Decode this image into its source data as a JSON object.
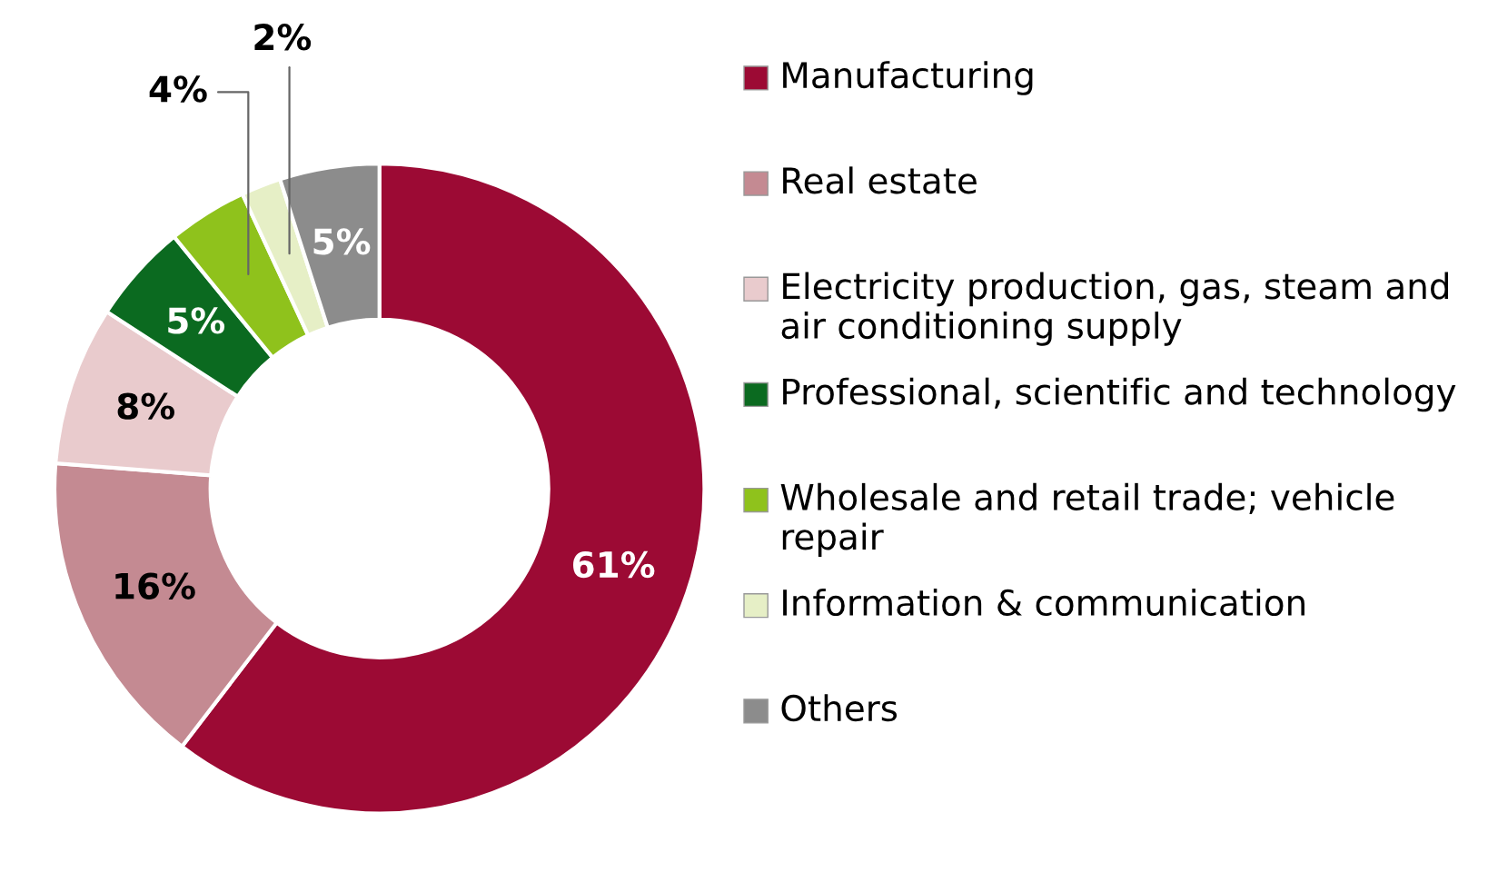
{
  "chart_data": {
    "type": "donut",
    "categories": [
      "Manufacturing",
      "Real estate",
      "Electricity production, gas, steam and air conditioning supply",
      "Professional, scientific and technology",
      "Wholesale and retail trade; vehicle repair",
      "Information & communication",
      "Others"
    ],
    "values": [
      61,
      16,
      8,
      5,
      4,
      2,
      5
    ],
    "value_labels": [
      "61%",
      "16%",
      "8%",
      "5%",
      "4%",
      "2%",
      "5%"
    ],
    "colors": [
      "#9c0a34",
      "#c48a92",
      "#e9cbcd",
      "#0b6a20",
      "#8fc21c",
      "#e6efc6",
      "#8c8c8c"
    ],
    "legend": "right"
  }
}
